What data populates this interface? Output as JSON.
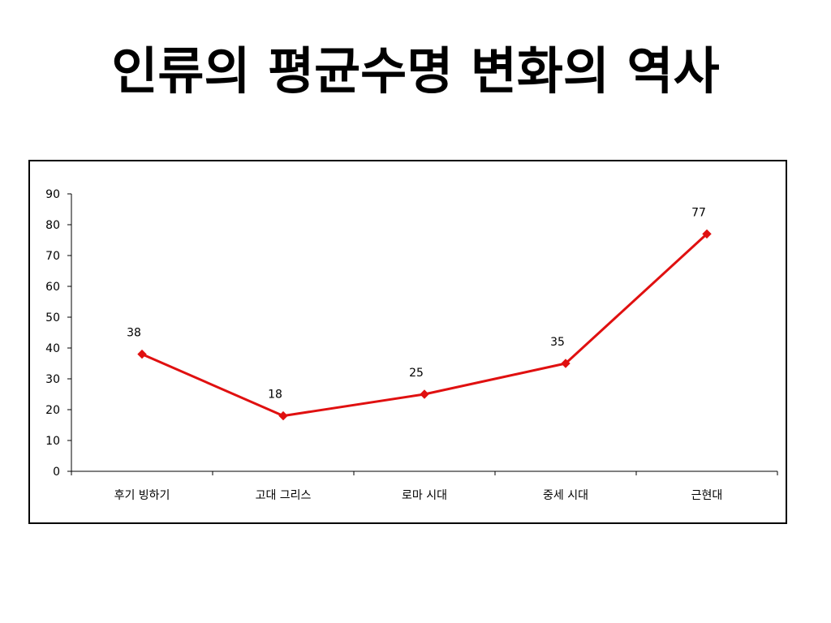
{
  "slide": {
    "title": "인류의 평균수명 변화의 역사"
  },
  "colors": {
    "series": "#e01010",
    "axis": "#000000",
    "frame": "#000000"
  },
  "chart_data": {
    "type": "line",
    "title": "인류의 평균수명 변화의 역사",
    "xlabel": "",
    "ylabel": "",
    "categories": [
      "후기 빙하기",
      "고대 그리스",
      "로마 시대",
      "중세 시대",
      "근현대"
    ],
    "series": [
      {
        "values": [
          38,
          18,
          25,
          35,
          77
        ]
      }
    ],
    "data_labels": [
      "38",
      "18",
      "25",
      "35",
      "77"
    ],
    "ylim": [
      0,
      90
    ],
    "yticks": [
      0,
      10,
      20,
      30,
      40,
      50,
      60,
      70,
      80,
      90
    ],
    "yticklabels": [
      "0",
      "10",
      "20",
      "30",
      "40",
      "50",
      "60",
      "70",
      "80",
      "90"
    ],
    "grid": false,
    "legend": "none",
    "marker": "diamond"
  }
}
